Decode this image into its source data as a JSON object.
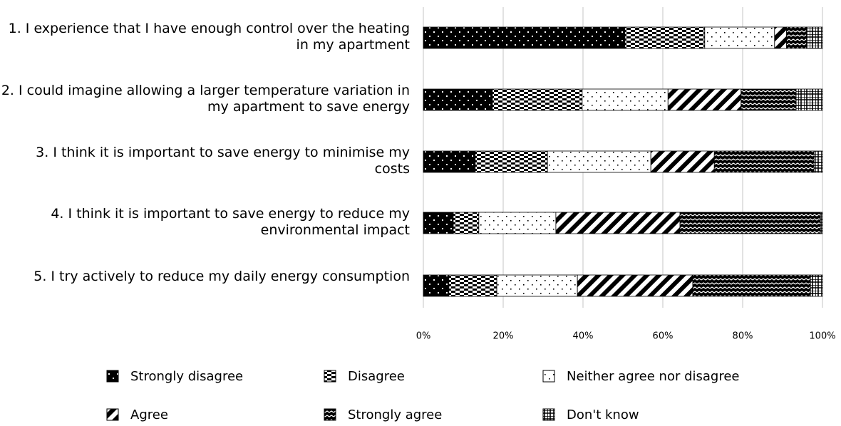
{
  "chart_data": {
    "type": "stacked_bar_horizontal",
    "categories": [
      "1.  I experience that I have enough control over the heating in my apartment",
      "2.  I could imagine allowing a larger temperature variation in my apartment to save energy",
      "3.  I think it is important to save energy to minimise my costs",
      "4.  I think it is important to save energy to reduce my environmental impact",
      "5.  I try actively to reduce my daily energy consumption"
    ],
    "series": [
      {
        "name": "Strongly disagree",
        "color": "#000000",
        "values": [
          50.5,
          17.3,
          13,
          7.5,
          6.4
        ]
      },
      {
        "name": "Disagree",
        "color": "#000000",
        "values": [
          20,
          22.5,
          18.1,
          6.4,
          12
        ]
      },
      {
        "name": "Neither agree nor disagree",
        "color": "#000000",
        "values": [
          17.5,
          21.5,
          25.9,
          19.3,
          20.2
        ]
      },
      {
        "name": "Agree",
        "color": "#000000",
        "values": [
          3,
          18.3,
          15.9,
          31.1,
          28.9
        ]
      },
      {
        "name": "Strongly agree",
        "color": "#000000",
        "values": [
          5,
          13.8,
          25,
          35.2,
          29.5
        ]
      },
      {
        "name": "Don't know",
        "color": "#000000",
        "values": [
          4,
          6.6,
          2.1,
          0.5,
          3
        ]
      }
    ],
    "xlim": [
      0,
      100
    ],
    "xticks": [
      {
        "value": 0,
        "label": "0%"
      },
      {
        "value": 20,
        "label": "20%"
      },
      {
        "value": 40,
        "label": "40%"
      },
      {
        "value": 60,
        "label": "60%"
      },
      {
        "value": 80,
        "label": "80%"
      },
      {
        "value": 100,
        "label": "100%"
      }
    ],
    "grid": true
  }
}
